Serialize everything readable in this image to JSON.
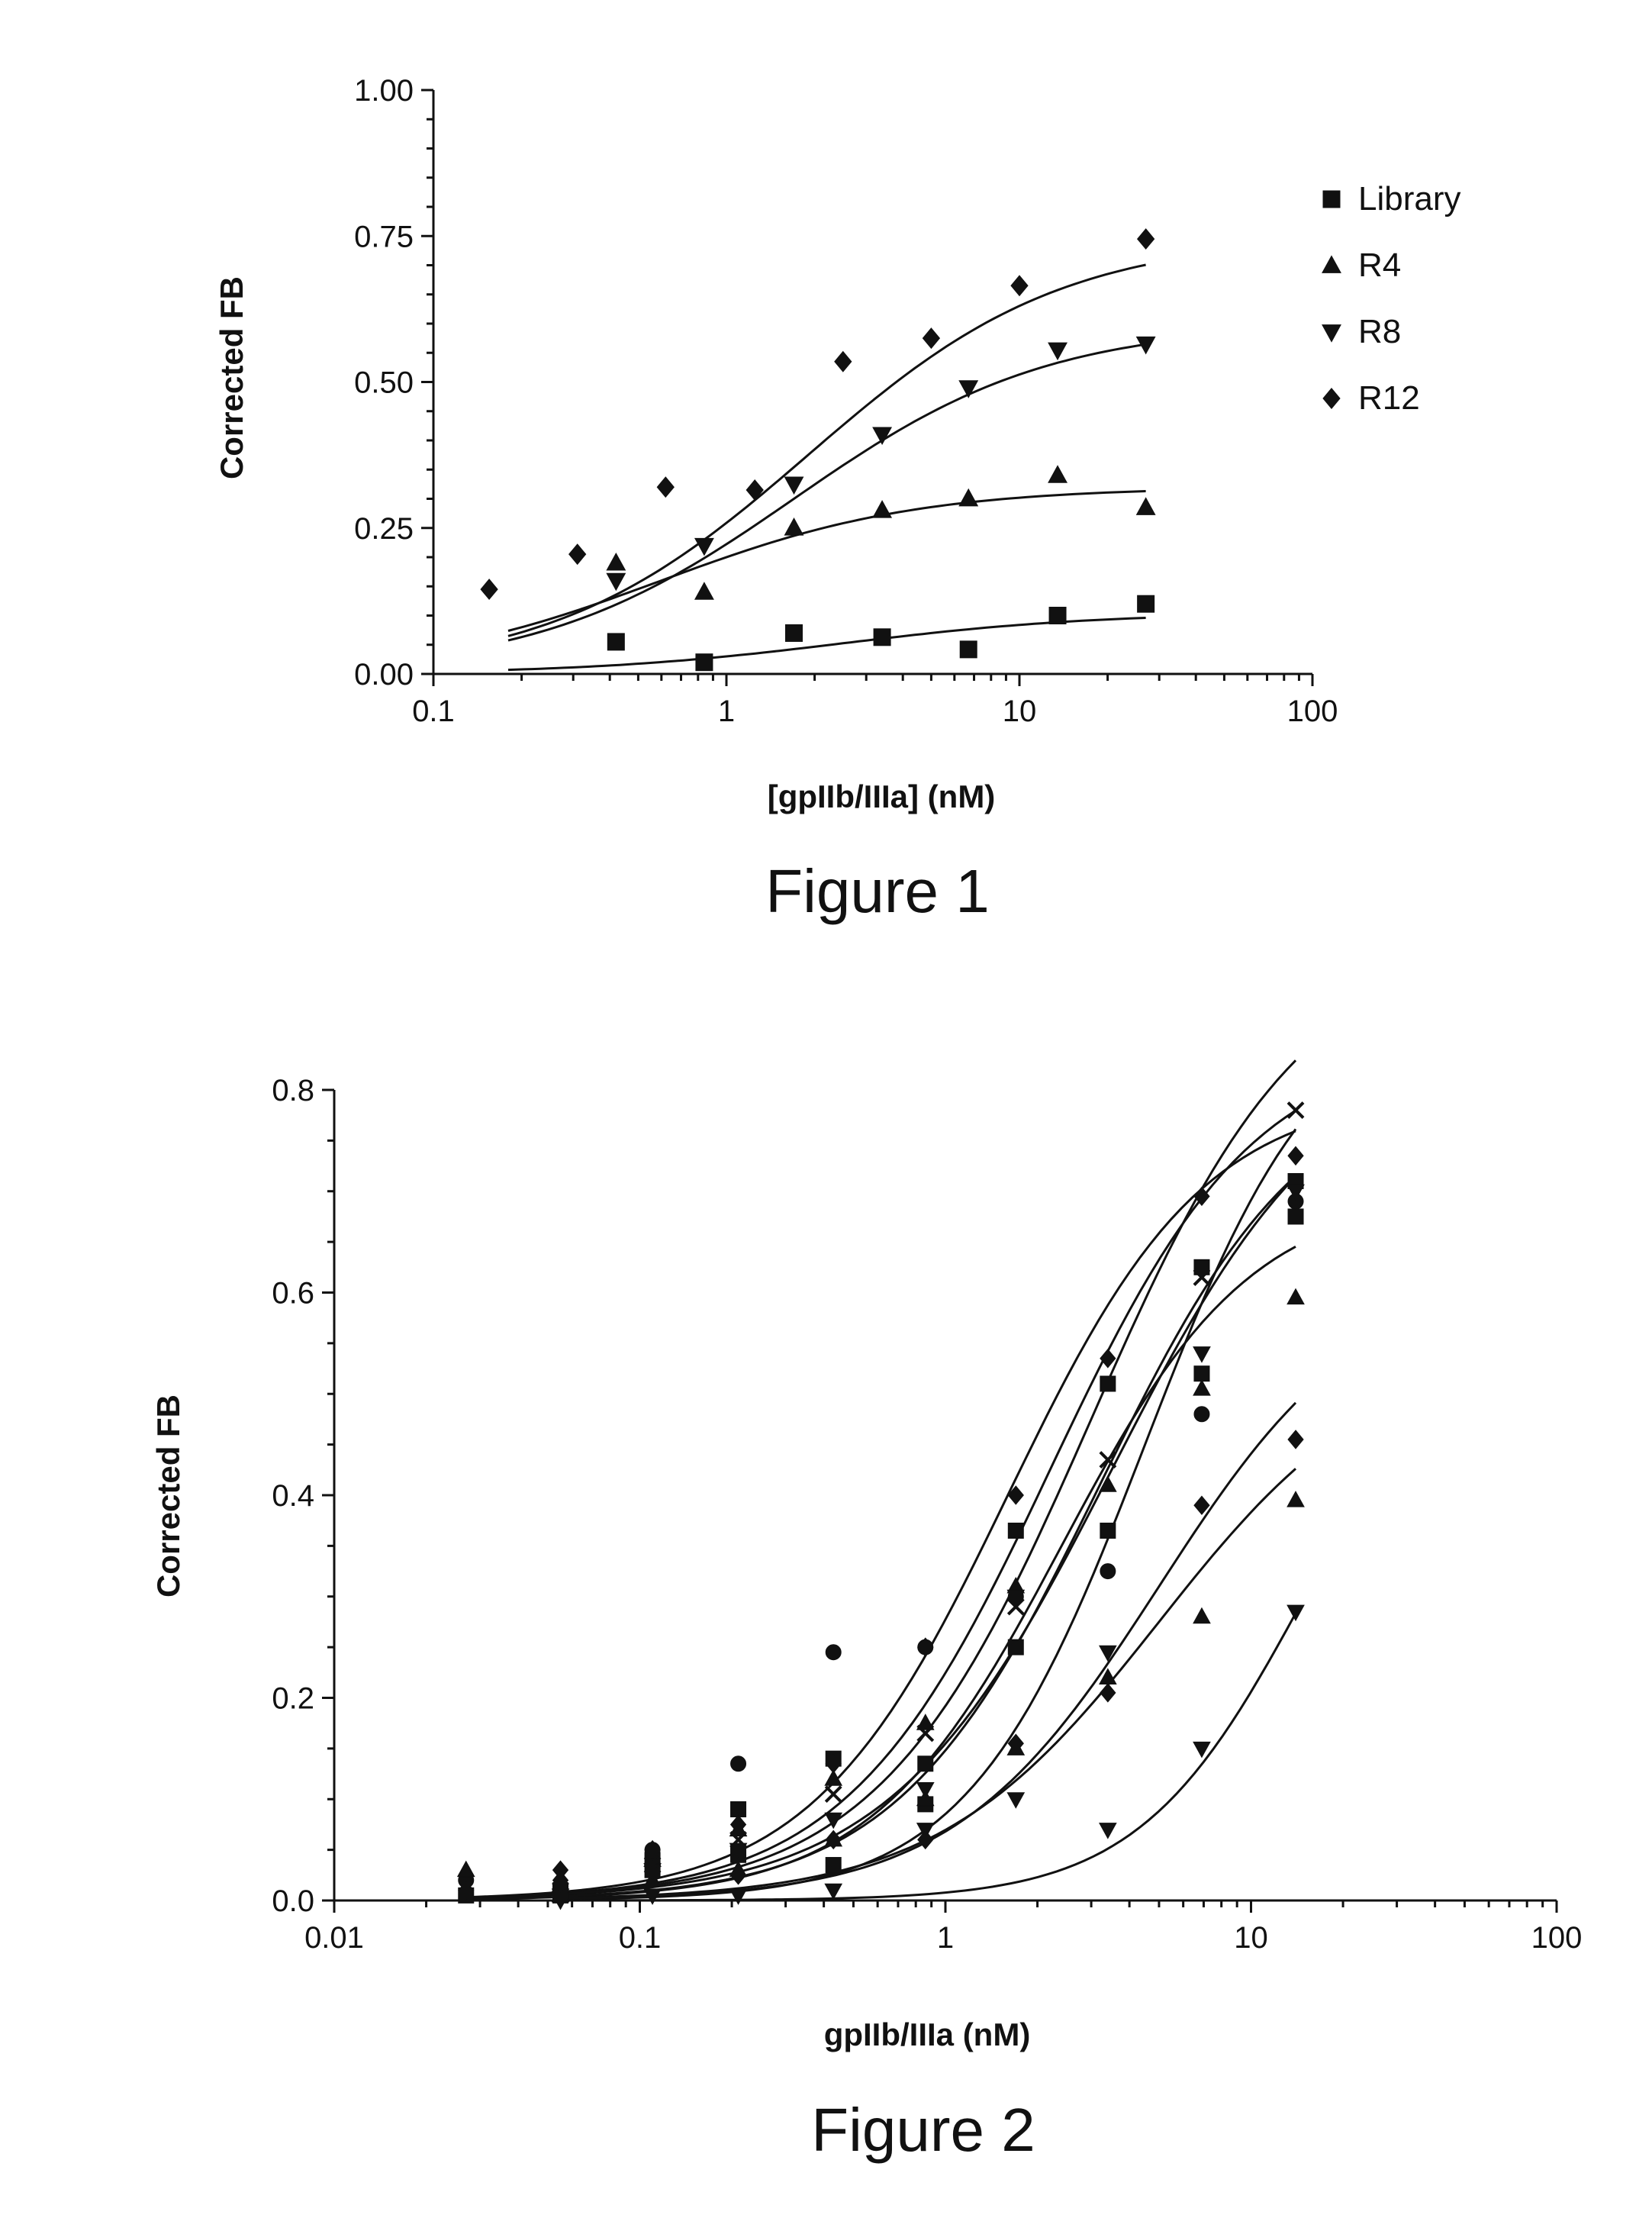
{
  "chart_data": [
    {
      "type": "scatter",
      "title": "",
      "caption": "Figure 1",
      "xlabel": "[gpIIb/IIIa] (nM)",
      "ylabel": "Corrected FB",
      "xscale": "log",
      "xlim": [
        0.1,
        100
      ],
      "ylim": [
        0,
        1.0
      ],
      "x_tick_labels": [
        "0.1",
        "1",
        "10",
        "100"
      ],
      "x_tick_values": [
        0.1,
        1,
        10,
        100
      ],
      "y_tick_labels": [
        "0.00",
        "0.25",
        "0.50",
        "0.75",
        "1.00"
      ],
      "y_tick_values": [
        0,
        0.25,
        0.5,
        0.75,
        1.0
      ],
      "legend_position": "right",
      "fit_lines": "sigmoidal binding fit per series",
      "series": [
        {
          "name": "Library",
          "marker": "square",
          "x": [
            0.42,
            0.84,
            1.7,
            3.4,
            6.7,
            13.5,
            27
          ],
          "y": [
            0.055,
            0.02,
            0.07,
            0.063,
            0.042,
            0.1,
            0.12
          ],
          "fit": {
            "xmin": 0.18,
            "xmax": 27,
            "bmax": 0.105,
            "kd": 2.5
          }
        },
        {
          "name": "R4",
          "marker": "triangle-up",
          "x": [
            0.42,
            0.84,
            1.7,
            3.4,
            6.7,
            13.5,
            27
          ],
          "y": [
            0.19,
            0.14,
            0.25,
            0.28,
            0.3,
            0.34,
            0.285
          ],
          "fit": {
            "xmin": 0.18,
            "xmax": 27,
            "bmax": 0.32,
            "kd": 0.6
          }
        },
        {
          "name": "R8",
          "marker": "triangle-down",
          "x": [
            0.42,
            0.84,
            1.7,
            3.4,
            6.7,
            13.5,
            27
          ],
          "y": [
            0.16,
            0.22,
            0.325,
            0.41,
            0.49,
            0.555,
            0.565
          ],
          "fit": {
            "xmin": 0.18,
            "xmax": 27,
            "bmax": 0.6,
            "kd": 1.7
          }
        },
        {
          "name": "R12",
          "marker": "diamond",
          "x": [
            0.155,
            0.31,
            0.62,
            1.25,
            2.5,
            5,
            10,
            27
          ],
          "y": [
            0.145,
            0.205,
            0.32,
            0.315,
            0.535,
            0.575,
            0.665,
            0.745
          ],
          "fit": {
            "xmin": 0.18,
            "xmax": 27,
            "bmax": 0.75,
            "kd": 1.9
          }
        }
      ]
    },
    {
      "type": "scatter",
      "title": "",
      "caption": "Figure 2",
      "xlabel": "gpIIb/IIIa (nM)",
      "ylabel": "Corrected FB",
      "xscale": "log",
      "xlim": [
        0.01,
        100
      ],
      "ylim": [
        0,
        0.8
      ],
      "x_tick_labels": [
        "0.01",
        "0.1",
        "1",
        "10",
        "100"
      ],
      "x_tick_values": [
        0.01,
        0.1,
        1,
        10,
        100
      ],
      "y_tick_labels": [
        "0.0",
        "0.2",
        "0.4",
        "0.6",
        "0.8"
      ],
      "y_tick_values": [
        0,
        0.2,
        0.4,
        0.6,
        0.8
      ],
      "legend": "none",
      "fit_lines": "multiple sigmoidal fits, one per series",
      "series": [
        {
          "marker": "circle",
          "x": [
            0.027,
            0.055,
            0.11,
            0.21,
            0.43,
            0.86,
            1.7,
            3.4,
            6.9,
            14
          ],
          "y": [
            0.02,
            0.01,
            0.05,
            0.135,
            0.245,
            0.25,
            0.3,
            0.325,
            0.48,
            0.69
          ],
          "fit": {
            "bmax": 0.85,
            "kd": 3.5,
            "h": 1.2
          }
        },
        {
          "marker": "square",
          "x": [
            0.027,
            0.055,
            0.11,
            0.21,
            0.43,
            0.86,
            1.7,
            3.4,
            6.9,
            14
          ],
          "y": [
            0.005,
            0.01,
            0.04,
            0.09,
            0.14,
            0.135,
            0.365,
            0.51,
            0.625,
            0.71
          ],
          "fit": {
            "bmax": 0.85,
            "kd": 2.2,
            "h": 1.3
          }
        },
        {
          "marker": "square",
          "x": [
            0.055,
            0.11,
            0.21,
            0.43,
            0.86,
            1.7,
            3.4,
            6.9,
            14
          ],
          "y": [
            0.005,
            0.03,
            0.045,
            0.035,
            0.095,
            0.25,
            0.365,
            0.52,
            0.675
          ],
          "fit": {
            "bmax": 0.9,
            "kd": 4.5,
            "h": 1.5
          }
        },
        {
          "marker": "triangle-up",
          "x": [
            0.027,
            0.055,
            0.11,
            0.21,
            0.43,
            0.86,
            1.7,
            3.4,
            6.9,
            14
          ],
          "y": [
            0.03,
            0.015,
            0.04,
            0.07,
            0.12,
            0.175,
            0.31,
            0.41,
            0.505,
            0.595
          ],
          "fit": {
            "bmax": 0.7,
            "kd": 2.4,
            "h": 1.4
          }
        },
        {
          "marker": "triangle-up",
          "x": [
            0.055,
            0.11,
            0.21,
            0.43,
            0.86,
            1.7,
            3.4,
            6.9,
            14
          ],
          "y": [
            0.005,
            0.02,
            0.03,
            0.06,
            0.1,
            0.15,
            0.22,
            0.28,
            0.395
          ],
          "fit": {
            "bmax": 0.55,
            "kd": 5.0,
            "h": 1.2
          }
        },
        {
          "marker": "triangle-down",
          "x": [
            0.055,
            0.11,
            0.21,
            0.43,
            0.86,
            1.7,
            3.4,
            6.9,
            14
          ],
          "y": [
            0.005,
            0.03,
            0.05,
            0.08,
            0.11,
            0.3,
            0.245,
            0.54,
            0.7
          ],
          "fit": {
            "bmax": 0.82,
            "kd": 3.2,
            "h": 1.3
          }
        },
        {
          "marker": "triangle-down",
          "x": [
            0.055,
            0.11,
            0.21,
            0.43,
            0.86,
            1.7,
            3.4,
            6.9,
            14
          ],
          "y": [
            0.0,
            0.005,
            0.005,
            0.01,
            0.07,
            0.1,
            0.07,
            0.15,
            0.285
          ],
          "fit": {
            "bmax": 0.6,
            "kd": 15,
            "h": 1.6
          }
        },
        {
          "marker": "diamond",
          "x": [
            0.027,
            0.055,
            0.11,
            0.21,
            0.43,
            0.86,
            1.7,
            3.4,
            6.9,
            14
          ],
          "y": [
            0.01,
            0.03,
            0.05,
            0.075,
            0.135,
            0.25,
            0.4,
            0.535,
            0.695,
            0.735
          ],
          "fit": {
            "bmax": 0.8,
            "kd": 1.6,
            "h": 1.35
          }
        },
        {
          "marker": "diamond",
          "x": [
            0.055,
            0.11,
            0.21,
            0.43,
            0.86,
            1.7,
            3.4,
            6.9,
            14
          ],
          "y": [
            0.02,
            0.03,
            0.025,
            0.06,
            0.06,
            0.155,
            0.205,
            0.39,
            0.455
          ],
          "fit": {
            "bmax": 0.62,
            "kd": 5.0,
            "h": 1.3
          }
        },
        {
          "marker": "x",
          "x": [
            0.055,
            0.11,
            0.21,
            0.43,
            0.86,
            1.7,
            3.4,
            6.9,
            14
          ],
          "y": [
            0.01,
            0.035,
            0.06,
            0.105,
            0.165,
            0.29,
            0.435,
            0.615,
            0.78
          ],
          "fit": {
            "bmax": 0.95,
            "kd": 3.0,
            "h": 1.25
          }
        }
      ]
    }
  ]
}
